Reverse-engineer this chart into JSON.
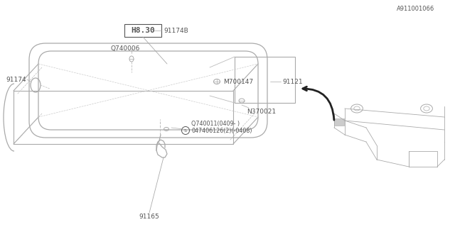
{
  "bg_color": "#ffffff",
  "line_color": "#aaaaaa",
  "dark_line": "#555555",
  "text_color": "#555555",
  "badge_text": "H8.30",
  "label_91165": "91165",
  "label_screw1": "Ⓜ047406126(2)(-0408)",
  "label_screw2": "Q740011(0409- )",
  "label_N370021": "N370021",
  "label_M700147": "M700147",
  "label_91121": "91121",
  "label_91174": "91174",
  "label_Q740006": "Q740006",
  "label_91174B": "91174B",
  "label_ref": "A911001066"
}
